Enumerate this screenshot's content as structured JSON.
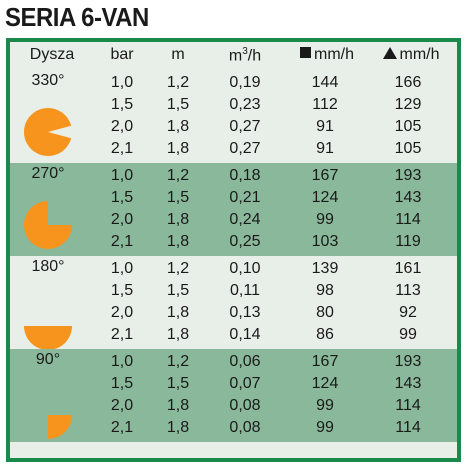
{
  "title": "SERIA 6-VAN",
  "headers": {
    "nozzle": "Dysza",
    "pressure": "bar",
    "radius": "m",
    "flow_base": "m",
    "flow_sup": "3",
    "flow_unit": "/h",
    "square_rate": "mm/h",
    "triangle_rate": "mm/h",
    "square_icon": "square-icon",
    "triangle_icon": "triangle-icon"
  },
  "colors": {
    "border": "#1a8a4a",
    "light_band": "#e8efe9",
    "dark_band": "#8ab89a",
    "pattern_fill": "#f7941d"
  },
  "groups": [
    {
      "angle": "330°",
      "arc_degrees": 330,
      "rows": [
        {
          "bar": "1,0",
          "m": "1,2",
          "flow": "0,19",
          "square": "144",
          "triangle": "166"
        },
        {
          "bar": "1,5",
          "m": "1,5",
          "flow": "0,23",
          "square": "112",
          "triangle": "129"
        },
        {
          "bar": "2,0",
          "m": "1,8",
          "flow": "0,27",
          "square": "91",
          "triangle": "105"
        },
        {
          "bar": "2,1",
          "m": "1,8",
          "flow": "0,27",
          "square": "91",
          "triangle": "105"
        }
      ]
    },
    {
      "angle": "270°",
      "arc_degrees": 270,
      "rows": [
        {
          "bar": "1,0",
          "m": "1,2",
          "flow": "0,18",
          "square": "167",
          "triangle": "193"
        },
        {
          "bar": "1,5",
          "m": "1,5",
          "flow": "0,21",
          "square": "124",
          "triangle": "143"
        },
        {
          "bar": "2,0",
          "m": "1,8",
          "flow": "0,24",
          "square": "99",
          "triangle": "114"
        },
        {
          "bar": "2,1",
          "m": "1,8",
          "flow": "0,25",
          "square": "103",
          "triangle": "119"
        }
      ]
    },
    {
      "angle": "180°",
      "arc_degrees": 180,
      "rows": [
        {
          "bar": "1,0",
          "m": "1,2",
          "flow": "0,10",
          "square": "139",
          "triangle": "161"
        },
        {
          "bar": "1,5",
          "m": "1,5",
          "flow": "0,11",
          "square": "98",
          "triangle": "113"
        },
        {
          "bar": "2,0",
          "m": "1,8",
          "flow": "0,13",
          "square": "80",
          "triangle": "92"
        },
        {
          "bar": "2,1",
          "m": "1,8",
          "flow": "0,14",
          "square": "86",
          "triangle": "99"
        }
      ]
    },
    {
      "angle": "90°",
      "arc_degrees": 90,
      "rows": [
        {
          "bar": "1,0",
          "m": "1,2",
          "flow": "0,06",
          "square": "167",
          "triangle": "193"
        },
        {
          "bar": "1,5",
          "m": "1,5",
          "flow": "0,07",
          "square": "124",
          "triangle": "143"
        },
        {
          "bar": "2,0",
          "m": "1,8",
          "flow": "0,08",
          "square": "99",
          "triangle": "114"
        },
        {
          "bar": "2,1",
          "m": "1,8",
          "flow": "0,08",
          "square": "99",
          "triangle": "114"
        }
      ]
    }
  ]
}
